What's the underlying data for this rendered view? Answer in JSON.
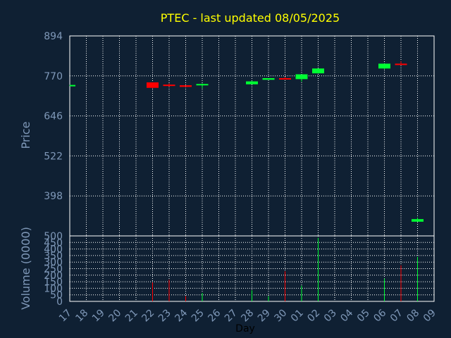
{
  "chart_data": {
    "type": "candlestick",
    "title": "PTEC - last updated 08/05/2025",
    "ylabel": "Price",
    "ylabel_volume": "Volume (0000)",
    "xlabel": "Day",
    "grid": true,
    "colors": {
      "up": "#00ff33",
      "down": "#ff0000",
      "background": "#0f2033",
      "axis_text": "#7f98b8",
      "title": "#ffff00"
    },
    "x_tick_labels": [
      "17",
      "18",
      "19",
      "20",
      "21",
      "22",
      "23",
      "24",
      "25",
      "26",
      "27",
      "28",
      "29",
      "30",
      "01",
      "02",
      "03",
      "04",
      "05",
      "06",
      "07",
      "08",
      "09"
    ],
    "price_ticks": [
      398,
      522,
      646,
      770,
      894
    ],
    "price_ylim": [
      274,
      894
    ],
    "volume_ticks": [
      0,
      50,
      100,
      150,
      200,
      250,
      300,
      350,
      400,
      450,
      500
    ],
    "volume_ylim": [
      0,
      500
    ],
    "candles": [
      {
        "day": "17",
        "open": 740,
        "close": 742,
        "high": 742,
        "low": 740,
        "volume": 0
      },
      {
        "day": "22",
        "open": 750,
        "close": 733,
        "high": 750,
        "low": 732,
        "volume": 145
      },
      {
        "day": "23",
        "open": 743,
        "close": 740,
        "high": 747,
        "low": 736,
        "volume": 165
      },
      {
        "day": "24",
        "open": 741,
        "close": 736,
        "high": 741,
        "low": 736,
        "volume": 40
      },
      {
        "day": "25",
        "open": 743,
        "close": 745,
        "high": 746,
        "low": 732,
        "volume": 65
      },
      {
        "day": "28",
        "open": 744,
        "close": 753,
        "high": 755,
        "low": 744,
        "volume": 85
      },
      {
        "day": "29",
        "open": 758,
        "close": 763,
        "high": 763,
        "low": 758,
        "volume": 40
      },
      {
        "day": "30",
        "open": 763,
        "close": 761,
        "high": 767,
        "low": 761,
        "volume": 230
      },
      {
        "day": "01",
        "open": 760,
        "close": 775,
        "high": 775,
        "low": 752,
        "volume": 120
      },
      {
        "day": "02",
        "open": 778,
        "close": 793,
        "high": 793,
        "low": 778,
        "volume": 485
      },
      {
        "day": "06",
        "open": 793,
        "close": 808,
        "high": 808,
        "low": 791,
        "volume": 175
      },
      {
        "day": "07",
        "open": 808,
        "close": 806,
        "high": 815,
        "low": 804,
        "volume": 275
      },
      {
        "day": "08",
        "open": 318,
        "close": 326,
        "high": 331,
        "low": 318,
        "volume": 340
      }
    ]
  }
}
